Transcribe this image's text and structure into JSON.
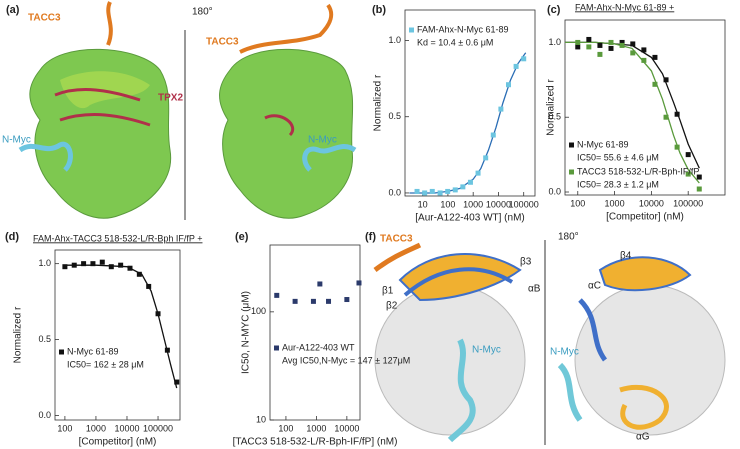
{
  "chart_data": [
    {
      "type": "scatter",
      "label": "(b)",
      "xlabel": "[Aur-A122-403 WT] (nM)",
      "ylabel": "Normalized r",
      "xscale": "log",
      "xlim": [
        2,
        280000
      ],
      "ylim": [
        -0.02,
        1.2
      ],
      "xticks": [
        10,
        100,
        1000,
        10000,
        100000
      ],
      "yticks": [
        {
          "value": 0,
          "label": "0.0"
        },
        0.5,
        {
          "value": 1,
          "label": "1.0"
        }
      ],
      "series": [
        {
          "name": "FAM-Ahx-N-Myc 61-89",
          "note": "Kd = 10.4 ± 0.6 μM",
          "color": "#6cc5e0",
          "x": [
            6,
            12,
            24,
            49,
            98,
            195,
            390,
            780,
            1560,
            3125,
            6250,
            12500,
            25000,
            50000,
            100000
          ],
          "values": [
            0.01,
            0.0,
            0.01,
            0.0,
            0.01,
            0.02,
            0.04,
            0.07,
            0.13,
            0.23,
            0.38,
            0.55,
            0.71,
            0.83,
            0.88
          ]
        }
      ],
      "fits": [
        {
          "color": "#2a6db5",
          "x": [
            3,
            10,
            30,
            100,
            300,
            1000,
            2000,
            4000,
            8000,
            15000,
            30000,
            60000,
            120000
          ],
          "values": [
            0.0,
            0.0,
            0.0,
            0.01,
            0.03,
            0.09,
            0.16,
            0.28,
            0.43,
            0.59,
            0.74,
            0.85,
            0.92
          ]
        }
      ]
    },
    {
      "type": "scatter",
      "label": "(c)",
      "title": "FAM-Ahx-N-Myc 61-89 +",
      "xlabel": "[Competitor] (nM)",
      "ylabel": "Normalized r",
      "xscale": "log",
      "xlim": [
        45,
        1000000
      ],
      "ylim": [
        -0.02,
        1.15
      ],
      "xticks": [
        100,
        1000,
        10000,
        100000
      ],
      "yticks": [
        {
          "value": 0,
          "label": "0.0"
        },
        0.5,
        {
          "value": 1,
          "label": "1.0"
        }
      ],
      "series": [
        {
          "name": "N-Myc 61-89",
          "note": "IC50= 55.6 ± 4.6 μM",
          "color": "#111111",
          "x": [
            100,
            200,
            400,
            800,
            1600,
            3125,
            6250,
            12500,
            25000,
            50000,
            100000,
            200000
          ],
          "values": [
            0.97,
            1.02,
            0.98,
            0.96,
            1.0,
            0.99,
            0.95,
            0.9,
            0.75,
            0.52,
            0.25,
            0.1
          ]
        },
        {
          "name": "TACC3 518-532-L/R-Bph-IF/fP",
          "note": "IC50= 28.3 ± 1.2 μM",
          "color": "#5a9a3c",
          "x": [
            100,
            200,
            400,
            800,
            1600,
            3125,
            6250,
            12500,
            25000,
            50000,
            100000,
            200000
          ],
          "values": [
            1.0,
            0.97,
            0.92,
            1.0,
            0.98,
            0.93,
            0.88,
            0.72,
            0.5,
            0.3,
            0.12,
            0.02
          ]
        }
      ],
      "fits": [
        {
          "color": "#111111",
          "x": [
            45,
            100,
            300,
            1000,
            3000,
            10000,
            20000,
            40000,
            60000,
            100000,
            200000
          ],
          "values": [
            1.0,
            1.0,
            1.0,
            0.99,
            0.98,
            0.9,
            0.79,
            0.6,
            0.48,
            0.32,
            0.16
          ]
        },
        {
          "color": "#5a9a3c",
          "x": [
            45,
            100,
            300,
            1000,
            3000,
            10000,
            20000,
            40000,
            60000,
            100000,
            200000
          ],
          "values": [
            1.0,
            1.0,
            1.0,
            0.99,
            0.96,
            0.81,
            0.62,
            0.38,
            0.26,
            0.15,
            0.06
          ]
        }
      ]
    },
    {
      "type": "scatter",
      "label": "(d)",
      "title": "FAM-Ahx-TACC3 518-532-L/R-Bph IF/fP +",
      "xlabel": "[Competitor] (nM)",
      "ylabel": "Normalized r",
      "xscale": "log",
      "xlim": [
        48,
        510000
      ],
      "ylim": [
        -0.03,
        1.09
      ],
      "xticks": [
        100,
        1000,
        10000,
        100000
      ],
      "yticks": [
        {
          "value": 0,
          "label": "0.0"
        },
        0.5,
        {
          "value": 1,
          "label": "1.0"
        }
      ],
      "series": [
        {
          "name": "N-Myc 61-89",
          "note": "IC50= 162 ± 28 μM",
          "color": "#111111",
          "x": [
            100,
            200,
            400,
            800,
            1600,
            3125,
            6250,
            12500,
            25000,
            50000,
            100000,
            200000,
            400000
          ],
          "values": [
            0.98,
            0.99,
            1.0,
            1.0,
            1.01,
            0.98,
            0.99,
            0.97,
            0.93,
            0.85,
            0.67,
            0.43,
            0.22
          ]
        }
      ],
      "fits": [
        {
          "color": "#111111",
          "x": [
            100,
            1000,
            10000,
            30000,
            60000,
            100000,
            160000,
            250000,
            400000
          ],
          "values": [
            0.99,
            0.99,
            0.98,
            0.93,
            0.82,
            0.67,
            0.5,
            0.34,
            0.18
          ]
        }
      ]
    },
    {
      "type": "scatter",
      "label": "(e)",
      "xlabel": "[TACC3 518-532-L/R-Bph-IF/fP] (nM)",
      "ylabel": "IC50, N-MYC (μM)",
      "xscale": "log",
      "yscale": "log",
      "xlim": [
        30,
        27000
      ],
      "ylim": [
        10,
        415
      ],
      "xticks": [
        100,
        1000,
        10000
      ],
      "yticks": [
        10,
        100
      ],
      "series": [
        {
          "name": "Aur-A122-403 WT",
          "note": "Avg IC50,N-Myc  = 147 ± 127μM",
          "color": "#2b3a6b",
          "x": [
            50,
            200,
            800,
            1300,
            2500,
            10000,
            25000
          ],
          "values": [
            142,
            125,
            125,
            181,
            125,
            130,
            185
          ]
        }
      ],
      "fits": []
    }
  ],
  "panel_a": {
    "label": "(a)",
    "rotation": "180°",
    "tacc3": [
      "TACC3",
      "TACC3"
    ],
    "tpx2": "TPX2",
    "nmyc": [
      "N-Myc",
      "N-Myc"
    ]
  },
  "panel_f": {
    "label": "(f)",
    "tacc3": "TACC3",
    "rotation": "180°",
    "b3": "β3",
    "b1": "β1",
    "b2": "β2",
    "aB": "αB",
    "aC": "αC",
    "b4": "β4",
    "aG": "αG",
    "nmyc": [
      "N-Myc",
      "N-Myc"
    ]
  }
}
